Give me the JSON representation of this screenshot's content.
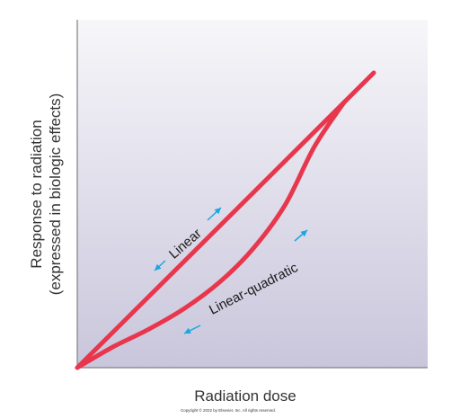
{
  "chart_data": {
    "type": "line",
    "xlabel": "Radiation dose",
    "ylabel_lines": [
      "Response to radiation",
      "(expressed in biologic effects)"
    ],
    "copyright": "Copyright © 2022 by Elsevier, Inc. All rights reserved.",
    "series": [
      {
        "name": "Linear",
        "x": [
          0,
          1.0
        ],
        "y": [
          0,
          1.0
        ]
      },
      {
        "name": "Linear-quadratic",
        "x": [
          0,
          0.12,
          0.24,
          0.36,
          0.48,
          0.59,
          0.7,
          0.8,
          0.9
        ],
        "y": [
          0,
          0.07,
          0.13,
          0.2,
          0.29,
          0.4,
          0.55,
          0.75,
          0.9
        ]
      }
    ],
    "colors": {
      "line": "#e8374d",
      "arrow": "#1aa6df",
      "axis": "#808080",
      "bg_top": "#f7f6f9",
      "bg_bottom": "#c9c6dc"
    },
    "icons": [
      "arrow-icon"
    ]
  }
}
